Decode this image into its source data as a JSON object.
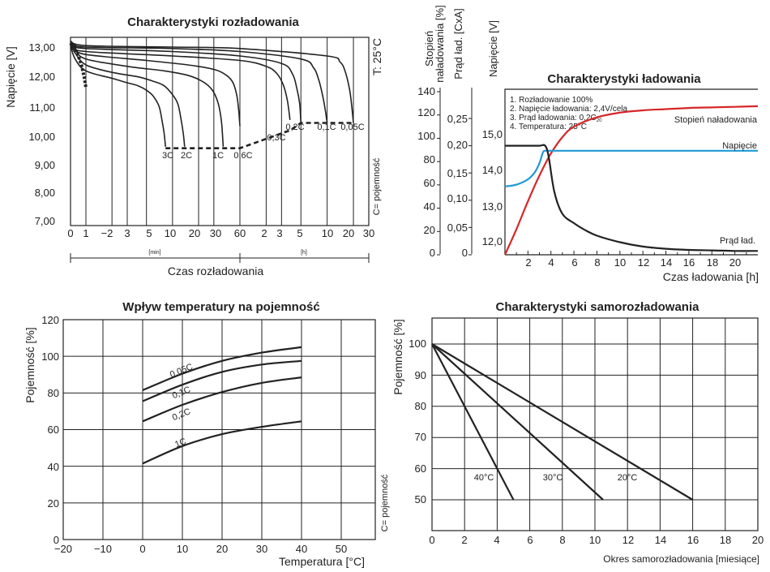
{
  "charts": {
    "discharge": {
      "title": "Charakterystyki rozładowania",
      "ylabel": "Napięcie  [V]",
      "xlabel": "Czas rozładowania",
      "yticks": [
        "7,00",
        "8,00",
        "9,00",
        "10,00",
        "11,00",
        "12,00",
        "13,00"
      ],
      "xticks": [
        "0",
        "1",
        "−2",
        "3",
        "5",
        "10",
        "20",
        "30",
        "60",
        "2",
        "3",
        "5",
        "10",
        "20",
        "30"
      ],
      "unit_min": "[min]",
      "unit_h": "[h]",
      "temp_label": "T: 25°C",
      "cap_label": "C= pojemność",
      "curve_labels": [
        "3C",
        "2C",
        "1C",
        "0,6C",
        "0,3C",
        "0,2C",
        "0,1C",
        "0,05C"
      ]
    },
    "charge": {
      "title": "Charakterystyki ładowania",
      "left_label_1a": "Stopień",
      "left_label_1b": "naładowania [%]",
      "left_label_2": "Prąd ład.  [CxA]",
      "left_label_3": "Napięcie  [V]",
      "xlabel": "Czas ładowania [h]",
      "yticks_pct": [
        "0",
        "20",
        "40",
        "60",
        "80",
        "100",
        "120",
        "140"
      ],
      "yticks_cur": [
        "0",
        "0,05",
        "0,10",
        "0,15",
        "0,20",
        "0,25"
      ],
      "yticks_v": [
        "12,0",
        "13,0",
        "14,0",
        "15,0"
      ],
      "xticks": [
        "2",
        "4",
        "6",
        "8",
        "10",
        "12",
        "14",
        "16",
        "18",
        "20"
      ],
      "notes": [
        "1. Rozładowanie 100%",
        "2. Napięcie ładowania: 2,4V/cela",
        "3. Prąd ładowania: 0,2C",
        "4. Temperatura: 25°C"
      ],
      "note3_sub": "20",
      "series_labels": [
        "Stopień naładowania",
        "Napięcie",
        "Prąd ład."
      ]
    },
    "temperature": {
      "title": "Wpływ temperatury na pojemność",
      "ylabel": "Pojemność [%]",
      "xlabel": "Temperatura [°C]",
      "cap_label": "C= pojemność",
      "yticks": [
        "0",
        "20",
        "40",
        "60",
        "80",
        "100",
        "120"
      ],
      "xticks": [
        "−20",
        "−10",
        "0",
        "10",
        "20",
        "30",
        "40",
        "50"
      ],
      "curve_labels": [
        "0,05C",
        "0,1C",
        "0,2C",
        "1C"
      ]
    },
    "selfdischarge": {
      "title": "Charakterystyki samorozładowania",
      "ylabel": "Pojemność [%]",
      "xlabel": "Okres samorozładowania [miesiące]",
      "yticks": [
        "50",
        "60",
        "70",
        "80",
        "90",
        "100"
      ],
      "xticks": [
        "0",
        "2",
        "4",
        "6",
        "8",
        "10",
        "12",
        "14",
        "16",
        "18",
        "20"
      ],
      "curve_labels": [
        "40°C",
        "30°C",
        "20°C"
      ]
    }
  },
  "chart_data": [
    {
      "type": "line",
      "title": "Charakterystyki rozładowania",
      "ylabel": "Napięcie  [V]",
      "xlabel": "Czas rozładowania",
      "x_note": "time axis: 0–60 min then 1–30 h; x values given in minutes",
      "ylim": [
        7,
        13.2
      ],
      "colors": {
        "line": "#222222"
      },
      "series": [
        {
          "name": "3C",
          "x": [
            0,
            0.3,
            1,
            2,
            3,
            4,
            5,
            6,
            7,
            7.6,
            8,
            8.3
          ],
          "y": [
            13.05,
            12.6,
            12.2,
            11.95,
            11.8,
            11.7,
            11.55,
            11.35,
            11.0,
            10.5,
            10.1,
            9.65
          ]
        },
        {
          "name": "2C",
          "x": [
            0,
            0.3,
            1,
            2,
            4,
            6,
            8,
            10,
            11.5,
            12.5,
            13.3,
            13.8
          ],
          "y": [
            13.1,
            12.8,
            12.4,
            12.15,
            12.0,
            11.85,
            11.7,
            11.4,
            11.1,
            10.6,
            10.1,
            9.65
          ]
        },
        {
          "name": "1C",
          "x": [
            0,
            0.3,
            1,
            3,
            8,
            15,
            22,
            28,
            32,
            35,
            37,
            38.5
          ],
          "y": [
            13.1,
            12.9,
            12.6,
            12.35,
            12.2,
            12.05,
            11.85,
            11.6,
            11.3,
            10.9,
            10.4,
            9.65
          ]
        },
        {
          "name": "0,6C",
          "x": [
            0,
            0.3,
            1,
            5,
            15,
            30,
            42,
            50,
            55,
            58,
            60
          ],
          "y": [
            13.1,
            12.95,
            12.75,
            12.55,
            12.4,
            12.25,
            12.05,
            11.8,
            11.4,
            10.9,
            10.35
          ]
        },
        {
          "name": "0,3C",
          "x": [
            0,
            0.3,
            1,
            10,
            60,
            120,
            160,
            190,
            210,
            225
          ],
          "y": [
            13.15,
            13.0,
            12.85,
            12.7,
            12.55,
            12.35,
            12.1,
            11.7,
            11.2,
            10.55
          ]
        },
        {
          "name": "0,2C",
          "x": [
            0,
            0.3,
            1,
            10,
            60,
            180,
            240,
            270,
            290,
            300
          ],
          "y": [
            13.15,
            13.05,
            12.95,
            12.85,
            12.7,
            12.45,
            12.1,
            11.6,
            11.1,
            10.45
          ]
        },
        {
          "name": "0,1C",
          "x": [
            0,
            0.3,
            1,
            10,
            60,
            300,
            420,
            480,
            530,
            570,
            600
          ],
          "y": [
            13.15,
            13.1,
            13.0,
            12.95,
            12.85,
            12.6,
            12.3,
            11.9,
            11.4,
            10.9,
            10.45
          ]
        },
        {
          "name": "0,05C",
          "x": [
            0,
            1,
            10,
            60,
            600,
            840,
            960,
            1080,
            1140,
            1200
          ],
          "y": [
            13.2,
            13.05,
            13.0,
            12.95,
            12.7,
            12.5,
            12.2,
            11.6,
            11.1,
            10.45
          ]
        }
      ],
      "cutoff_line": {
        "x": [
          8.3,
          60,
          225,
          300,
          600,
          1200
        ],
        "y": [
          9.6,
          9.6,
          10.2,
          10.45,
          10.45,
          10.45
        ]
      }
    },
    {
      "type": "line",
      "title": "Charakterystyki ładowania",
      "xlabel": "Czas ładowania [h]",
      "xlim": [
        0,
        22
      ],
      "colors": {
        "charge": "#d62728",
        "voltage": "#1f9ad6",
        "current": "#222222"
      },
      "series": [
        {
          "name": "Stopień naładowania",
          "unit": "%",
          "x": [
            0,
            1,
            2,
            3,
            4,
            5,
            6,
            8,
            10,
            12,
            14,
            16,
            18,
            20,
            22
          ],
          "y": [
            0,
            22,
            46,
            68,
            87,
            101,
            110,
            118,
            122,
            124,
            125,
            126,
            126.5,
            127,
            127.5
          ]
        },
        {
          "name": "Napięcie",
          "unit": "V",
          "x": [
            0,
            1,
            2,
            2.6,
            3,
            3.3,
            3.5,
            4,
            6,
            10,
            22
          ],
          "y": [
            13.55,
            13.6,
            13.75,
            13.95,
            14.2,
            14.5,
            14.55,
            14.55,
            14.55,
            14.55,
            14.55
          ]
        },
        {
          "name": "Prąd ład.",
          "unit": "CxA",
          "x": [
            0,
            1,
            2,
            3,
            3.5,
            3.8,
            4.3,
            5,
            6,
            7,
            8,
            10,
            12,
            14,
            16,
            18,
            20,
            22
          ],
          "y": [
            0.2,
            0.2,
            0.2,
            0.2,
            0.2,
            0.18,
            0.115,
            0.075,
            0.058,
            0.045,
            0.035,
            0.023,
            0.015,
            0.011,
            0.009,
            0.008,
            0.007,
            0.007
          ]
        }
      ]
    },
    {
      "type": "line",
      "title": "Wpływ temperatury na pojemność",
      "xlabel": "Temperatura [°C]",
      "ylabel": "Pojemność [%]",
      "xlim": [
        -20,
        58
      ],
      "ylim": [
        0,
        120
      ],
      "colors": {
        "line": "#222222"
      },
      "series": [
        {
          "name": "0,05C",
          "x": [
            0,
            10,
            20,
            30,
            40
          ],
          "y": [
            81.5,
            90.5,
            97.5,
            102,
            105
          ]
        },
        {
          "name": "0,1C",
          "x": [
            0,
            10,
            20,
            30,
            40
          ],
          "y": [
            75.5,
            84.5,
            91.5,
            95.5,
            97.5
          ]
        },
        {
          "name": "0,2C",
          "x": [
            0,
            10,
            20,
            30,
            40
          ],
          "y": [
            64.5,
            73.5,
            80.5,
            85.5,
            88.5
          ]
        },
        {
          "name": "1C",
          "x": [
            0,
            10,
            20,
            30,
            40
          ],
          "y": [
            41.5,
            51,
            57.5,
            61.5,
            64.5
          ]
        }
      ]
    },
    {
      "type": "line",
      "title": "Charakterystyki samorozładowania",
      "xlabel": "Okres samorozładowania [miesiące]",
      "ylabel": "Pojemność [%]",
      "xlim": [
        0,
        20
      ],
      "ylim": [
        40,
        107
      ],
      "colors": {
        "line": "#222222"
      },
      "series": [
        {
          "name": "40°C",
          "x": [
            0,
            5
          ],
          "y": [
            100,
            50
          ]
        },
        {
          "name": "30°C",
          "x": [
            0,
            10.5
          ],
          "y": [
            100,
            50
          ]
        },
        {
          "name": "20°C",
          "x": [
            0,
            16
          ],
          "y": [
            100,
            50
          ]
        }
      ]
    }
  ]
}
